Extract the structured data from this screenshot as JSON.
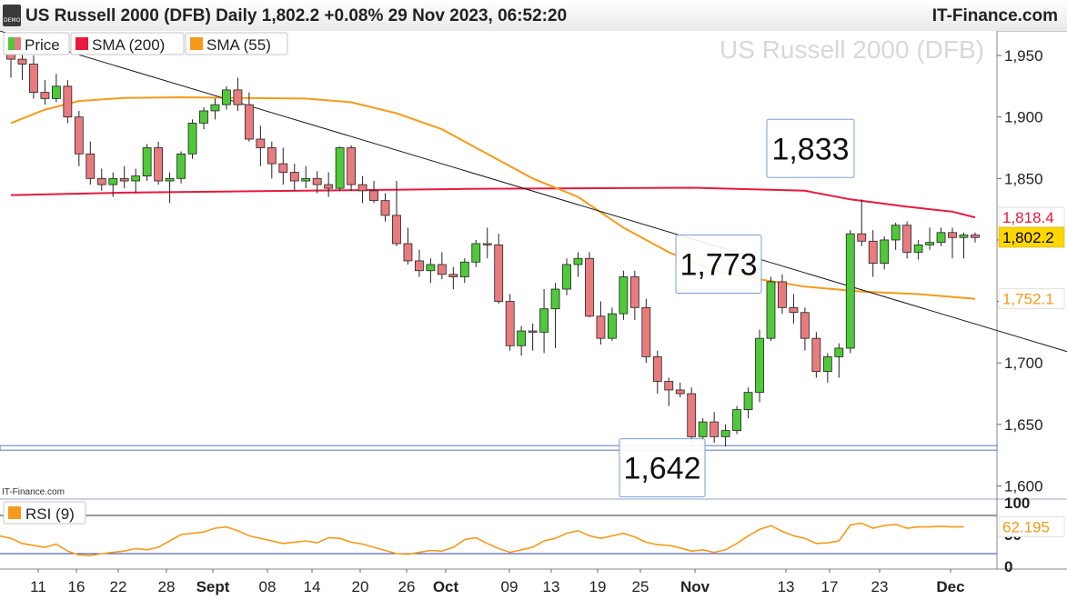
{
  "header": {
    "title": "US Russell 2000 (DFB) Daily 1,802.2 +0.08% 29 Nov 2023, 06:52:20",
    "site": "IT-Finance.com",
    "demo_badge": "DEMO",
    "watermark": "US Russell 2000 (DFB)",
    "source": "IT-Finance.com"
  },
  "colors": {
    "up": "#4fc93a",
    "down": "#e87b7e",
    "sma200": "#e8183f",
    "sma55": "#f59a1a",
    "rsi": "#f59a1a",
    "trendline": "#1a1a1a",
    "last_price": "#ffd700"
  },
  "chart_data": {
    "type": "candlestick",
    "title": "US Russell 2000 (DFB)",
    "legend": [
      {
        "key": "price",
        "label": "Price"
      },
      {
        "key": "sma200",
        "label": "SMA (200)"
      },
      {
        "key": "sma55",
        "label": "SMA (55)"
      }
    ],
    "ylim": [
      1590,
      1970
    ],
    "y_ticks": [
      {
        "value": 1950,
        "label": "1,950"
      },
      {
        "value": 1900,
        "label": "1,900"
      },
      {
        "value": 1850,
        "label": "1,850"
      },
      {
        "value": 1800,
        "label": "1,800"
      },
      {
        "value": 1750,
        "label": "1,750"
      },
      {
        "value": 1700,
        "label": "1,700"
      },
      {
        "value": 1650,
        "label": "1,650"
      },
      {
        "value": 1600,
        "label": "1,600"
      }
    ],
    "x_ticks": [
      {
        "label": "11",
        "bold": false
      },
      {
        "label": "16",
        "bold": false
      },
      {
        "label": "22",
        "bold": false
      },
      {
        "label": "28",
        "bold": false
      },
      {
        "label": "Sept",
        "bold": true
      },
      {
        "label": "08",
        "bold": false
      },
      {
        "label": "14",
        "bold": false
      },
      {
        "label": "20",
        "bold": false
      },
      {
        "label": "26",
        "bold": false
      },
      {
        "label": "Oct",
        "bold": true
      },
      {
        "label": "09",
        "bold": false
      },
      {
        "label": "13",
        "bold": false
      },
      {
        "label": "19",
        "bold": false
      },
      {
        "label": "25",
        "bold": false
      },
      {
        "label": "Nov",
        "bold": true
      },
      {
        "label": "13",
        "bold": false
      },
      {
        "label": "17",
        "bold": false
      },
      {
        "label": "23",
        "bold": false
      },
      {
        "label": "Dec",
        "bold": true
      }
    ],
    "candles": [
      [
        1953,
        1961,
        1932,
        1947
      ],
      [
        1947,
        1958,
        1930,
        1943
      ],
      [
        1943,
        1950,
        1915,
        1920
      ],
      [
        1920,
        1930,
        1910,
        1915
      ],
      [
        1915,
        1935,
        1912,
        1925
      ],
      [
        1925,
        1930,
        1895,
        1900
      ],
      [
        1900,
        1905,
        1860,
        1870
      ],
      [
        1870,
        1880,
        1845,
        1850
      ],
      [
        1850,
        1858,
        1840,
        1845
      ],
      [
        1845,
        1855,
        1835,
        1850
      ],
      [
        1850,
        1860,
        1842,
        1848
      ],
      [
        1848,
        1858,
        1838,
        1852
      ],
      [
        1852,
        1878,
        1848,
        1875
      ],
      [
        1875,
        1880,
        1845,
        1848
      ],
      [
        1848,
        1855,
        1830,
        1850
      ],
      [
        1850,
        1872,
        1846,
        1870
      ],
      [
        1870,
        1898,
        1866,
        1895
      ],
      [
        1895,
        1908,
        1890,
        1905
      ],
      [
        1905,
        1915,
        1898,
        1910
      ],
      [
        1910,
        1925,
        1906,
        1922
      ],
      [
        1922,
        1932,
        1905,
        1910
      ],
      [
        1910,
        1920,
        1880,
        1882
      ],
      [
        1882,
        1893,
        1860,
        1875
      ],
      [
        1875,
        1880,
        1850,
        1862
      ],
      [
        1862,
        1875,
        1845,
        1855
      ],
      [
        1855,
        1862,
        1840,
        1848
      ],
      [
        1848,
        1860,
        1842,
        1850
      ],
      [
        1850,
        1856,
        1838,
        1845
      ],
      [
        1845,
        1855,
        1835,
        1842
      ],
      [
        1842,
        1876,
        1840,
        1875
      ],
      [
        1875,
        1877,
        1840,
        1845
      ],
      [
        1845,
        1852,
        1830,
        1840
      ],
      [
        1840,
        1848,
        1830,
        1832
      ],
      [
        1832,
        1838,
        1815,
        1820
      ],
      [
        1820,
        1848,
        1795,
        1797
      ],
      [
        1797,
        1810,
        1780,
        1783
      ],
      [
        1783,
        1792,
        1770,
        1775
      ],
      [
        1775,
        1785,
        1765,
        1780
      ],
      [
        1780,
        1790,
        1768,
        1772
      ],
      [
        1772,
        1778,
        1760,
        1770
      ],
      [
        1770,
        1785,
        1765,
        1782
      ],
      [
        1782,
        1800,
        1778,
        1797
      ],
      [
        1797,
        1810,
        1785,
        1796
      ],
      [
        1796,
        1805,
        1748,
        1750
      ],
      [
        1750,
        1756,
        1710,
        1714
      ],
      [
        1714,
        1730,
        1706,
        1726
      ],
      [
        1726,
        1732,
        1710,
        1725
      ],
      [
        1725,
        1760,
        1708,
        1744
      ],
      [
        1744,
        1765,
        1712,
        1760
      ],
      [
        1760,
        1785,
        1755,
        1780
      ],
      [
        1780,
        1790,
        1770,
        1785
      ],
      [
        1785,
        1790,
        1737,
        1738
      ],
      [
        1738,
        1750,
        1715,
        1720
      ],
      [
        1720,
        1745,
        1718,
        1740
      ],
      [
        1740,
        1775,
        1735,
        1770
      ],
      [
        1770,
        1775,
        1735,
        1745
      ],
      [
        1745,
        1752,
        1700,
        1705
      ],
      [
        1705,
        1710,
        1675,
        1685
      ],
      [
        1685,
        1688,
        1665,
        1678
      ],
      [
        1678,
        1684,
        1672,
        1675
      ],
      [
        1675,
        1680,
        1635,
        1640
      ],
      [
        1640,
        1655,
        1636,
        1652
      ],
      [
        1652,
        1660,
        1635,
        1640
      ],
      [
        1640,
        1650,
        1632,
        1645
      ],
      [
        1645,
        1665,
        1642,
        1662
      ],
      [
        1662,
        1680,
        1655,
        1676
      ],
      [
        1676,
        1727,
        1668,
        1720
      ],
      [
        1720,
        1770,
        1718,
        1766
      ],
      [
        1766,
        1772,
        1740,
        1745
      ],
      [
        1745,
        1756,
        1732,
        1741
      ],
      [
        1741,
        1745,
        1710,
        1720
      ],
      [
        1720,
        1725,
        1688,
        1693
      ],
      [
        1693,
        1708,
        1684,
        1705
      ],
      [
        1705,
        1716,
        1688,
        1712
      ],
      [
        1712,
        1808,
        1708,
        1805
      ],
      [
        1805,
        1833,
        1795,
        1799
      ],
      [
        1799,
        1808,
        1770,
        1781
      ],
      [
        1781,
        1803,
        1776,
        1800
      ],
      [
        1800,
        1814,
        1792,
        1812
      ],
      [
        1812,
        1815,
        1785,
        1790
      ],
      [
        1790,
        1800,
        1784,
        1796
      ],
      [
        1796,
        1810,
        1792,
        1798
      ],
      [
        1798,
        1810,
        1795,
        1806
      ],
      [
        1806,
        1810,
        1785,
        1802
      ],
      [
        1802,
        1806,
        1785,
        1804
      ],
      [
        1804,
        1806,
        1798,
        1802
      ]
    ],
    "sma200": [
      [
        0,
        1836.5
      ],
      [
        10,
        1838.5
      ],
      [
        20,
        1839.5
      ],
      [
        30,
        1840.5
      ],
      [
        40,
        1841.5
      ],
      [
        50,
        1842
      ],
      [
        60,
        1842.5
      ],
      [
        70,
        1840
      ],
      [
        74,
        1833
      ],
      [
        79,
        1827
      ],
      [
        83,
        1823
      ],
      [
        85,
        1818.4
      ]
    ],
    "sma55": [
      [
        0,
        1895
      ],
      [
        3,
        1906
      ],
      [
        6,
        1913
      ],
      [
        10,
        1915.5
      ],
      [
        15,
        1916
      ],
      [
        20,
        1915.5
      ],
      [
        26,
        1915
      ],
      [
        30,
        1912
      ],
      [
        34,
        1903
      ],
      [
        38,
        1890
      ],
      [
        42,
        1870
      ],
      [
        46,
        1850
      ],
      [
        50,
        1835
      ],
      [
        54,
        1810
      ],
      [
        58,
        1790
      ],
      [
        62,
        1775
      ],
      [
        66,
        1768
      ],
      [
        70,
        1762
      ],
      [
        75,
        1758
      ],
      [
        80,
        1756
      ],
      [
        85,
        1752.1
      ]
    ],
    "trendline": {
      "from": [
        -1,
        1970
      ],
      "to": [
        95,
        1704
      ]
    },
    "annotations": [
      {
        "label": "1,833",
        "value": 1833,
        "index": 75
      },
      {
        "label": "1,773",
        "value": 1773,
        "index": 66
      },
      {
        "label": "1,642",
        "value": 1642,
        "index": 61
      }
    ],
    "price_tags": [
      {
        "key": "sma200",
        "value": 1818.4,
        "label": "1,818.4"
      },
      {
        "key": "last",
        "value": 1802.2,
        "label": "1,802.2"
      },
      {
        "key": "sma55",
        "value": 1752.1,
        "label": "1,752.1"
      }
    ],
    "rsi": {
      "label": "RSI (9)",
      "value_label": "62.195",
      "ticks": [
        "100",
        "50",
        "0"
      ],
      "values": [
        48,
        44,
        36,
        33,
        30,
        35,
        24,
        18,
        17,
        20,
        22,
        24,
        28,
        26,
        30,
        40,
        50,
        52,
        54,
        60,
        62,
        56,
        48,
        44,
        40,
        36,
        38,
        40,
        37,
        45,
        44,
        38,
        35,
        30,
        25,
        20,
        19,
        22,
        25,
        24,
        30,
        42,
        45,
        36,
        28,
        22,
        26,
        30,
        40,
        44,
        52,
        56,
        48,
        44,
        48,
        52,
        46,
        38,
        34,
        33,
        29,
        24,
        26,
        22,
        26,
        36,
        48,
        58,
        64,
        55,
        48,
        44,
        36,
        37,
        40,
        65,
        68,
        60,
        64,
        66,
        60,
        62,
        62,
        63,
        62,
        62
      ]
    }
  }
}
